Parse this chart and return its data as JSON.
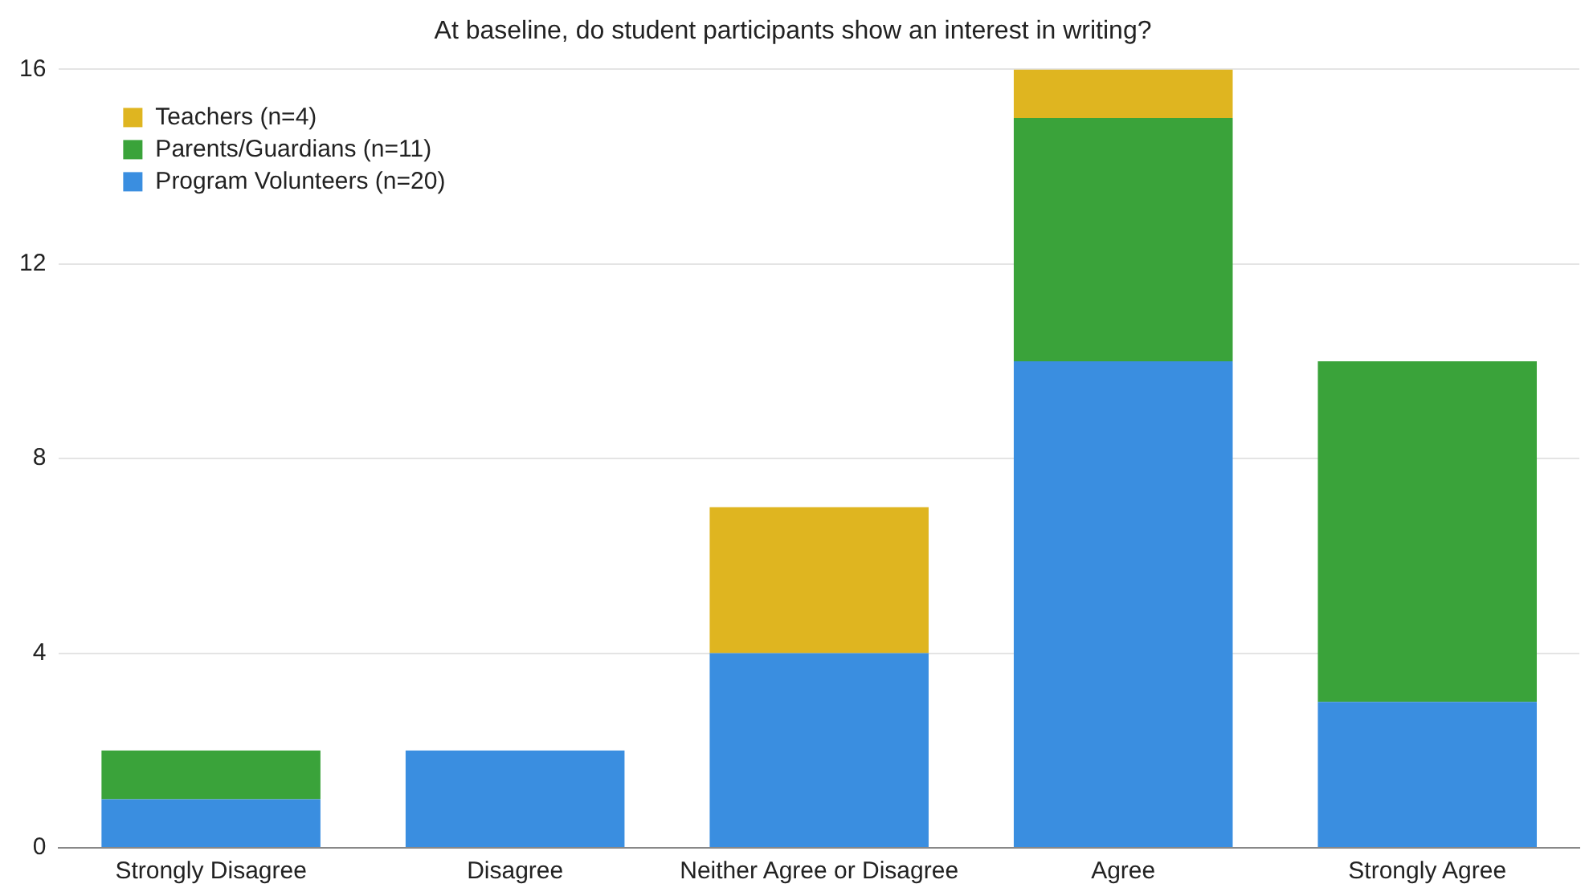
{
  "chart_data": {
    "type": "bar",
    "title": "At baseline, do student participants show an interest in writing?",
    "categories": [
      "Strongly Disagree",
      "Disagree",
      "Neither Agree or Disagree",
      "Agree",
      "Strongly Agree"
    ],
    "series": [
      {
        "name": "Program Volunteers (n=20)",
        "color": "#3a8ee0",
        "values": [
          1,
          2,
          4,
          10,
          3
        ]
      },
      {
        "name": "Parents/Guardians (n=11)",
        "color": "#3aa33a",
        "values": [
          1,
          0,
          0,
          5,
          7
        ]
      },
      {
        "name": "Teachers (n=4)",
        "color": "#dfb520",
        "values": [
          0,
          0,
          3,
          1,
          0
        ]
      }
    ],
    "stacked": true,
    "ylim": [
      0,
      16
    ],
    "yticks": [
      0,
      4,
      8,
      12,
      16
    ],
    "grid": "y",
    "legend": "top left"
  }
}
